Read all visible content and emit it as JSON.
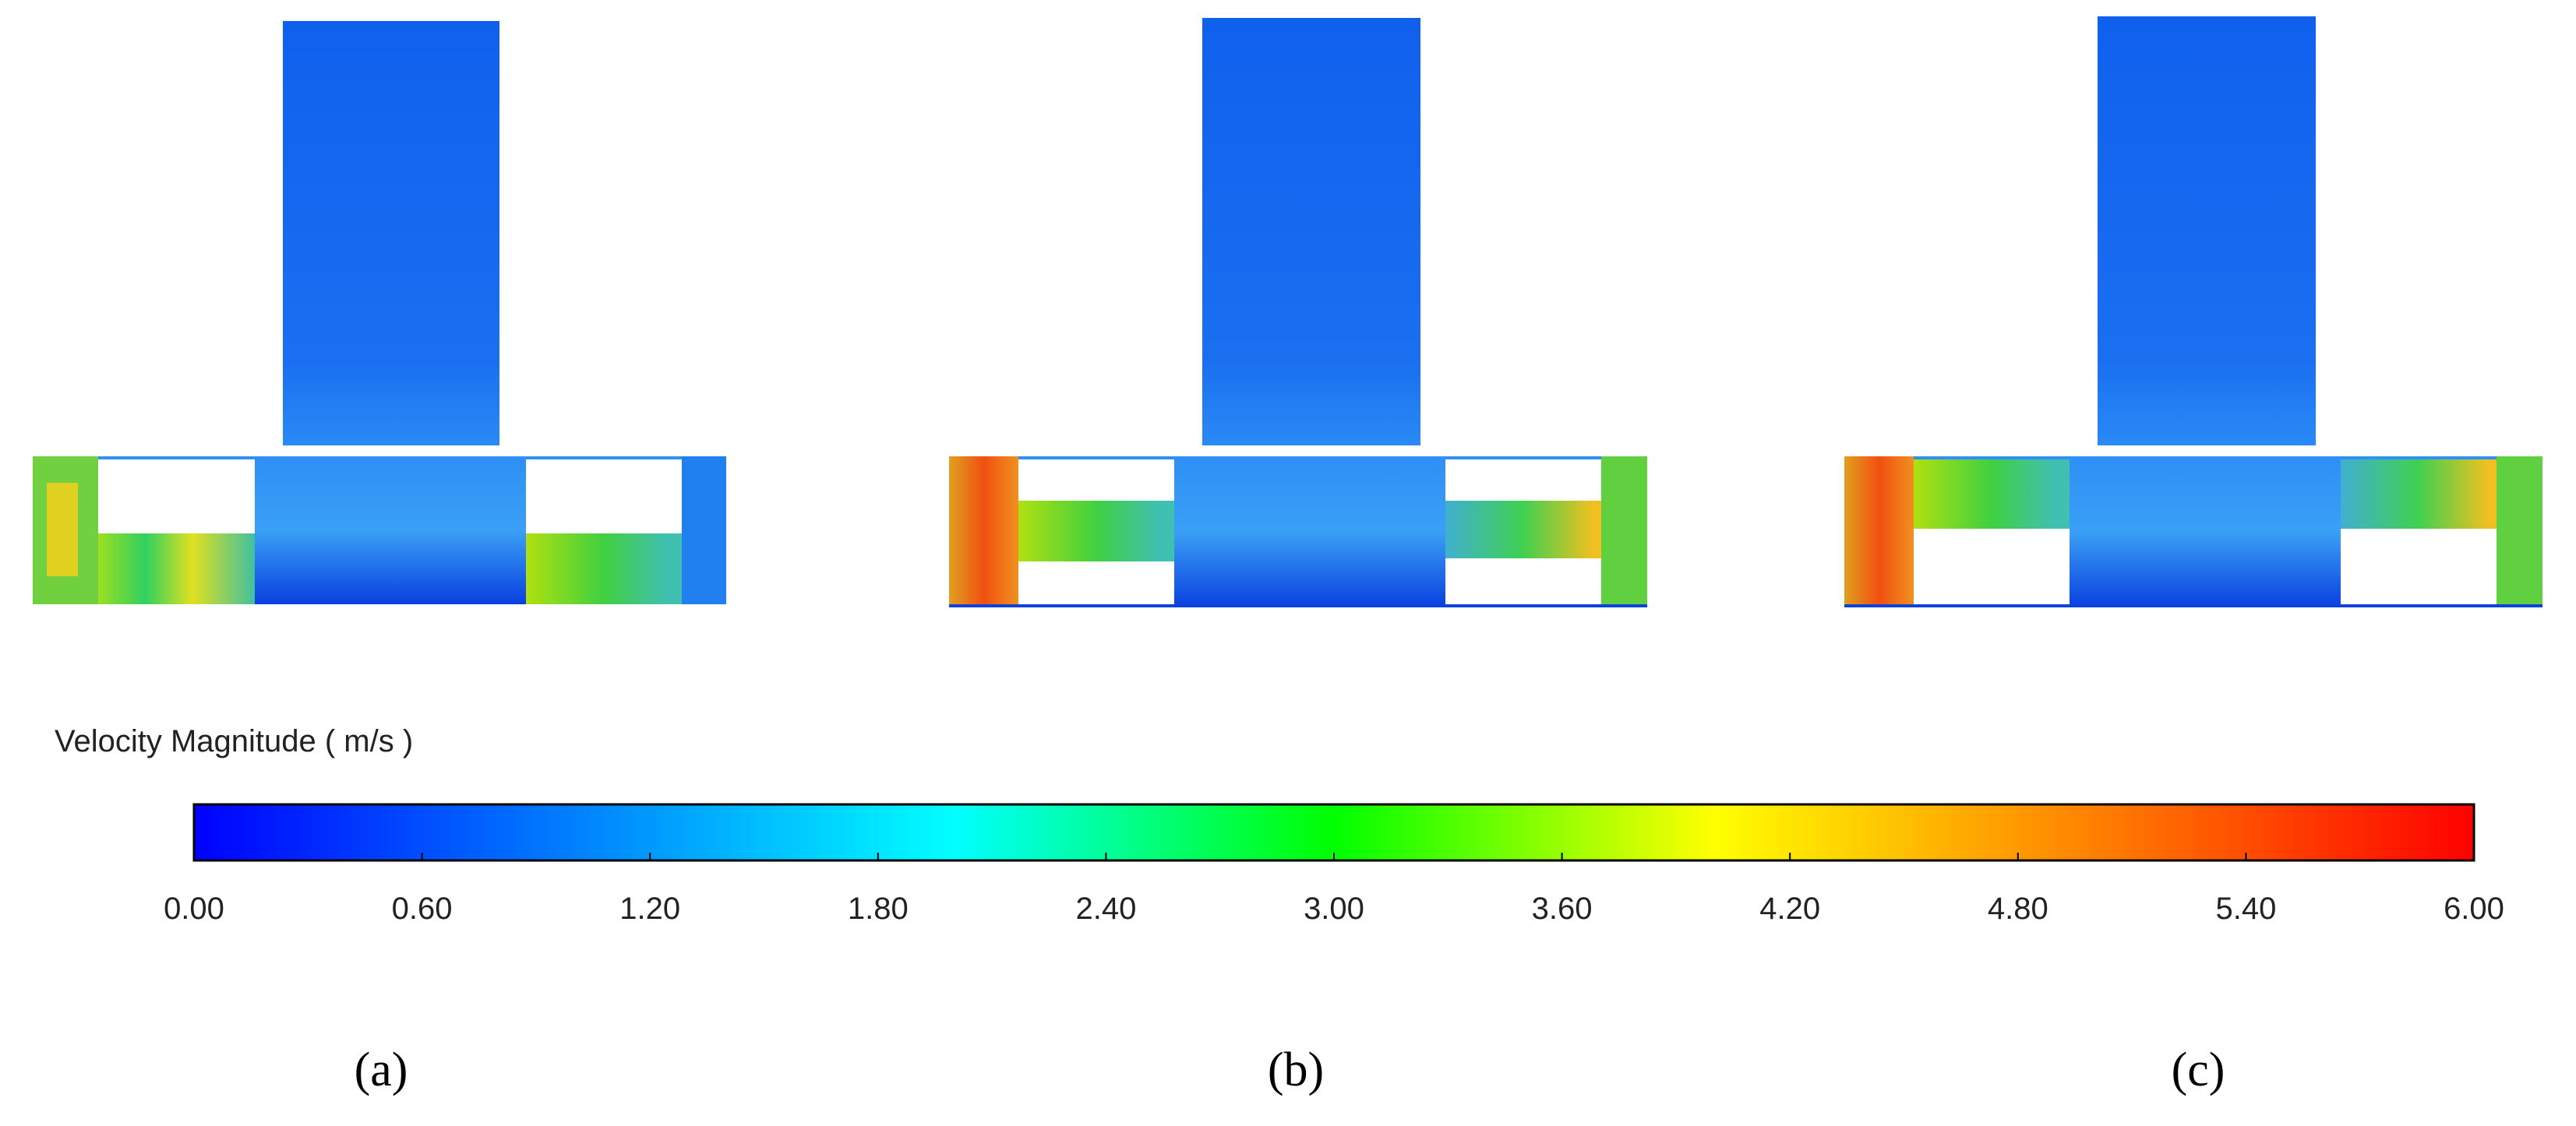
{
  "colorbar": {
    "title": "Velocity Magnitude ( m/s )",
    "range": [
      0,
      6
    ],
    "colors": [
      "#0000ff",
      "#0080ff",
      "#00ffff",
      "#00ff00",
      "#ffff00",
      "#ff8000",
      "#ff0000"
    ],
    "ticks": [
      {
        "value": 0,
        "label": "0.00"
      },
      {
        "value": 0.6,
        "label": "0.60"
      },
      {
        "value": 1.2,
        "label": "1.20"
      },
      {
        "value": 1.8,
        "label": "1.80"
      },
      {
        "value": 2.4,
        "label": "2.40"
      },
      {
        "value": 3,
        "label": "3.00"
      },
      {
        "value": 3.6,
        "label": "3.60"
      },
      {
        "value": 4.2,
        "label": "4.20"
      },
      {
        "value": 4.8,
        "label": "4.80"
      },
      {
        "value": 5.4,
        "label": "5.40"
      },
      {
        "value": 6,
        "label": "6.00"
      }
    ]
  },
  "panels": [
    {
      "label": "(a)"
    },
    {
      "label": "(b)"
    },
    {
      "label": "(c)"
    }
  ]
}
